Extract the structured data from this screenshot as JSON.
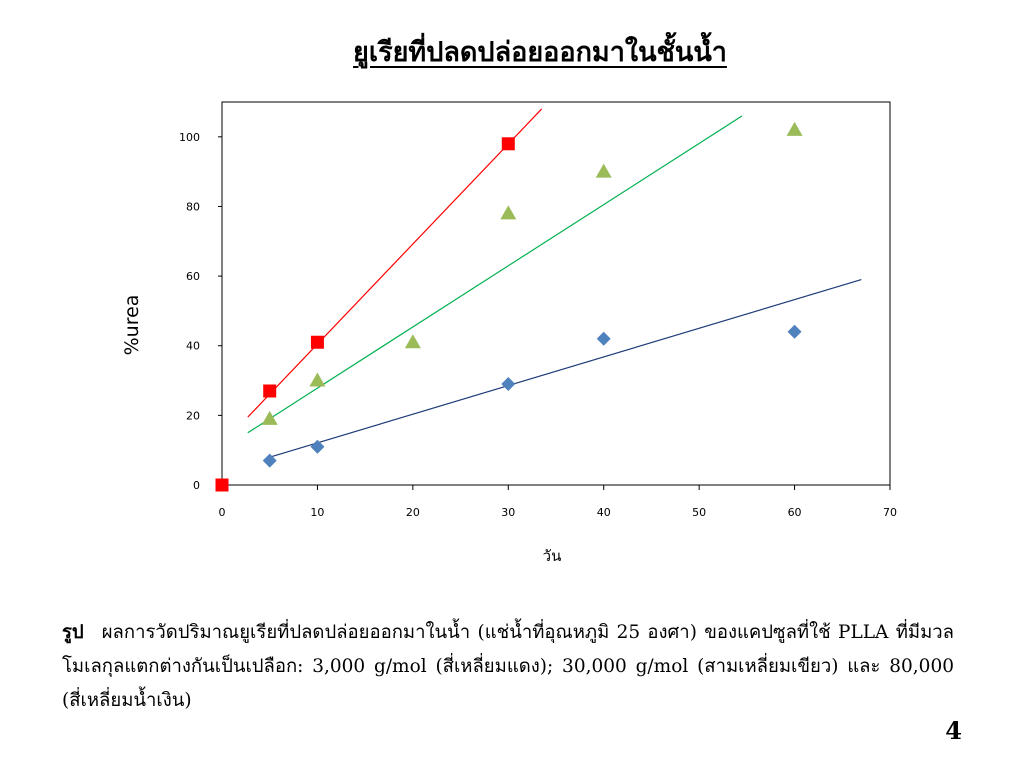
{
  "slide": {
    "title": "ยูเรียที่ปลดปล่อยออกมาในชั้นน้ำ",
    "caption_label": "รูป",
    "caption_text": "ผลการวัดปริมาณยูเรียที่ปลดปล่อยออกมาในน้ำ (แช่น้ำที่อุณหภูมิ 25 องศา) ของแคปซูลที่ใช้ PLLA ที่มีมวลโมเลกุลแตกต่างกันเป็นเปลือก: 3,000 g/mol (สี่เหลี่ยมแดง); 30,000 g/mol (สามเหลี่ยมเขียว) และ 80,000 (สี่เหลี่ยมน้ำเงิน)",
    "page_number": "4"
  },
  "chart_data": {
    "type": "scatter",
    "xlabel": "วัน",
    "ylabel": "%urea",
    "xlim": [
      0,
      70
    ],
    "ylim": [
      0,
      110
    ],
    "xticks": [
      0,
      10,
      20,
      30,
      40,
      50,
      60,
      70
    ],
    "yticks": [
      0,
      20,
      40,
      60,
      80,
      100
    ],
    "grid": false,
    "legend": "none",
    "series": [
      {
        "marker": "square",
        "color": "#ff0000",
        "line_color": "#ff0000",
        "points": [
          [
            0,
            0
          ],
          [
            5,
            27
          ],
          [
            10,
            41
          ],
          [
            30,
            98
          ]
        ],
        "trendline": [
          [
            2.7,
            19.5
          ],
          [
            33.5,
            108
          ]
        ]
      },
      {
        "marker": "triangle",
        "color": "#9bbb59",
        "line_color": "#00b050",
        "points": [
          [
            5,
            19
          ],
          [
            10,
            30
          ],
          [
            20,
            41
          ],
          [
            30,
            78
          ],
          [
            40,
            90
          ],
          [
            60,
            102
          ]
        ],
        "trendline": [
          [
            2.7,
            15
          ],
          [
            54.5,
            106
          ]
        ]
      },
      {
        "marker": "diamond",
        "color": "#4f81bd",
        "line_color": "#1f3a7a",
        "points": [
          [
            5,
            7
          ],
          [
            10,
            11
          ],
          [
            30,
            29
          ],
          [
            40,
            42
          ],
          [
            60,
            44
          ]
        ],
        "trendline": [
          [
            5,
            8
          ],
          [
            67,
            59
          ]
        ]
      }
    ]
  }
}
